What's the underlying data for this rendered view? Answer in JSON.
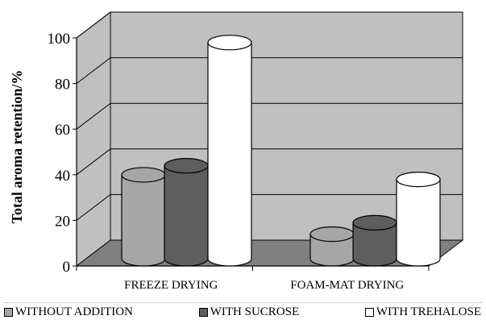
{
  "chart_data": {
    "type": "bar",
    "style": "3d-cylinder",
    "title": "",
    "xlabel": "",
    "ylabel": "Total aroma retention/%",
    "ylim": [
      0,
      100
    ],
    "yticks": [
      "0",
      "20",
      "40",
      "60",
      "80",
      "100"
    ],
    "grid": true,
    "legend_position": "bottom",
    "categories": [
      "FREEZE DRYING",
      "FOAM-MAT DRYING"
    ],
    "series": [
      {
        "name": "WITHOUT ADDITION",
        "color": "#a6a6a6",
        "values": [
          35,
          9
        ]
      },
      {
        "name": "WITH SUCROSE",
        "color": "#5e5e5e",
        "values": [
          39,
          14
        ]
      },
      {
        "name": "WITH TREHALOSE",
        "color": "#ffffff",
        "values": [
          93,
          33
        ]
      }
    ],
    "colors": {
      "wall": "#c0c0c0",
      "floor": "#808080",
      "grid": "#000000"
    }
  }
}
